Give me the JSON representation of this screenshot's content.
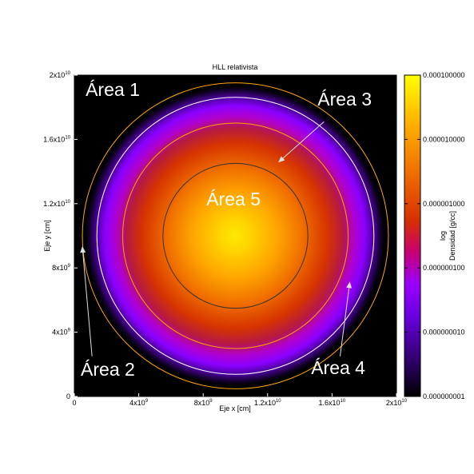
{
  "chart_data": {
    "type": "heatmap",
    "title": "HLL relativista",
    "xlabel": "Eje x [cm]",
    "ylabel": "Eje y [cm]",
    "xlim": [
      0,
      20000000000
    ],
    "ylim": [
      0,
      20000000000
    ],
    "x_ticks": [
      {
        "value": 0,
        "mant": "0",
        "exp": ""
      },
      {
        "value": 4000000000,
        "mant": "4x10",
        "exp": "9"
      },
      {
        "value": 8000000000,
        "mant": "8x10",
        "exp": "9"
      },
      {
        "value": 12000000000,
        "mant": "1.2x10",
        "exp": "10"
      },
      {
        "value": 16000000000,
        "mant": "1.6x10",
        "exp": "10"
      },
      {
        "value": 20000000000,
        "mant": "2x10",
        "exp": "10"
      }
    ],
    "y_ticks": [
      {
        "value": 0,
        "mant": "0",
        "exp": ""
      },
      {
        "value": 4000000000,
        "mant": "4x10",
        "exp": "9"
      },
      {
        "value": 8000000000,
        "mant": "8x10",
        "exp": "9"
      },
      {
        "value": 12000000000,
        "mant": "1.2x10",
        "exp": "10"
      },
      {
        "value": 16000000000,
        "mant": "1.6x10",
        "exp": "10"
      },
      {
        "value": 20000000000,
        "mant": "2x10",
        "exp": "10"
      }
    ],
    "colorbar": {
      "label_line1": "log",
      "label_line2": "Densidad [g/cc]",
      "scale": "log",
      "range": [
        1e-09,
        0.0001
      ],
      "ticks": [
        {
          "value": 0.0001,
          "label": "0.000100000"
        },
        {
          "value": 1e-05,
          "label": "0.000010000"
        },
        {
          "value": 1e-06,
          "label": "0.000001000"
        },
        {
          "value": 1e-07,
          "label": "0.000000100"
        },
        {
          "value": 1e-08,
          "label": "0.000000010"
        },
        {
          "value": 1e-09,
          "label": "0.000000001"
        }
      ],
      "palette": [
        "#000000",
        "#3a0080",
        "#8a00ff",
        "#b000c8",
        "#d82000",
        "#f06000",
        "#ffa000",
        "#ffe000",
        "#ffff40"
      ]
    },
    "center": [
      10000000000,
      10000000000
    ],
    "density_profile": [
      {
        "r": 0,
        "density": 3e-05
      },
      {
        "r": 1000000000,
        "density": 2.5e-05
      },
      {
        "r": 2000000000,
        "density": 1.5e-05
      },
      {
        "r": 3000000000,
        "density": 8e-06
      },
      {
        "r": 4000000000,
        "density": 4e-06
      },
      {
        "r": 5000000000,
        "density": 1.5e-06
      },
      {
        "r": 6000000000,
        "density": 7e-07
      },
      {
        "r": 7000000000,
        "density": 3e-07
      },
      {
        "r": 7500000000,
        "density": 1e-07
      },
      {
        "r": 8000000000,
        "density": 4e-08
      },
      {
        "r": 8500000000,
        "density": 1.5e-08
      },
      {
        "r": 9000000000,
        "density": 5e-09
      },
      {
        "r": 9300000000,
        "density": 1e-09
      }
    ],
    "circles": [
      {
        "r": 9500000000,
        "color": "#ffa500"
      },
      {
        "r": 8600000000,
        "color": "#ffffff"
      },
      {
        "r": 7000000000,
        "color": "#ffa500"
      },
      {
        "r": 4500000000,
        "color": "#333333"
      }
    ],
    "annotations": [
      {
        "text": "Área 1",
        "x": 700000000,
        "y": 18700000000
      },
      {
        "text": "Área 2",
        "x": 400000000,
        "y": 1300000000,
        "arrow_from": [
          1100000000,
          2500000000
        ],
        "arrow_to": [
          500000000,
          9300000000
        ]
      },
      {
        "text": "Área 3",
        "x": 15100000000,
        "y": 18100000000,
        "arrow_from": [
          15500000000,
          17100000000
        ],
        "arrow_to": [
          12700000000,
          14600000000
        ]
      },
      {
        "text": "Área 4",
        "x": 14700000000,
        "y": 1400000000,
        "arrow_from": [
          16500000000,
          2500000000
        ],
        "arrow_to": [
          17100000000,
          7100000000
        ]
      },
      {
        "text": "Área 5",
        "x": 8200000000,
        "y": 11900000000
      }
    ]
  }
}
